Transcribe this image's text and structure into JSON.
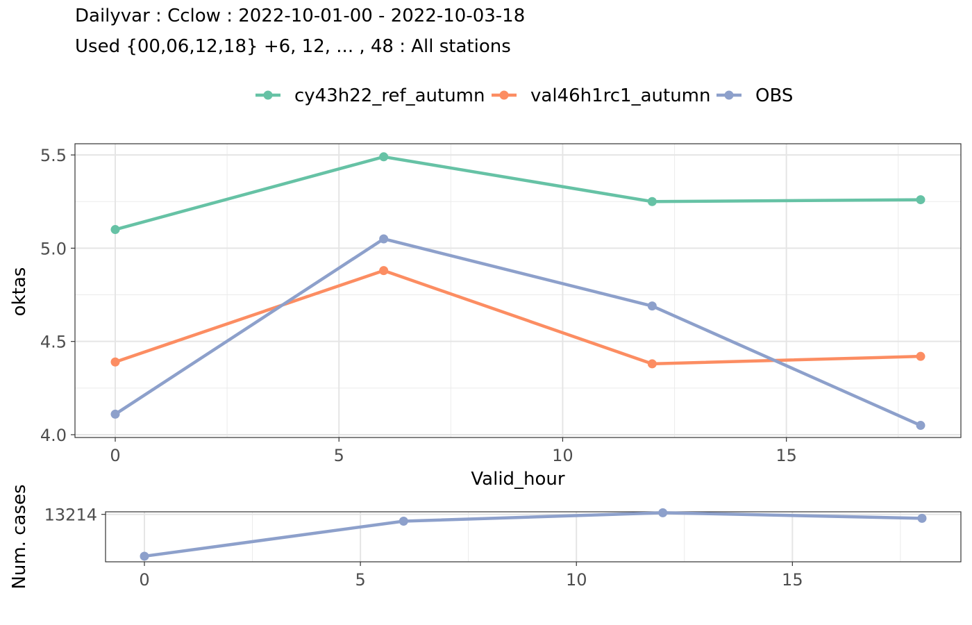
{
  "header": {
    "title_line1": "Dailyvar : Cclow : 2022-10-01-00 - 2022-10-03-18",
    "title_line2": "Used {00,06,12,18} +6, 12, ... , 48 : All stations"
  },
  "colors": {
    "cy43h22_ref_autumn": "#66c2a5",
    "val46h1rc1_autumn": "#fc8d62",
    "OBS": "#8da0cb"
  },
  "chart_data": [
    {
      "type": "line",
      "xlabel": "Valid_hour",
      "ylabel": "oktas",
      "xlim": [
        -0.9,
        18.9
      ],
      "ylim": [
        3.985,
        5.56
      ],
      "x_ticks": [
        "0",
        "5",
        "10",
        "15"
      ],
      "y_ticks": [
        "4.0",
        "4.5",
        "5.0",
        "5.5"
      ],
      "grid": true,
      "legend_position": "top",
      "x": [
        0,
        6,
        12,
        18
      ],
      "series": [
        {
          "name": "cy43h22_ref_autumn",
          "values": [
            5.1,
            5.49,
            5.25,
            5.26
          ]
        },
        {
          "name": "val46h1rc1_autumn",
          "values": [
            4.39,
            4.88,
            4.38,
            4.42
          ]
        },
        {
          "name": "OBS",
          "values": [
            4.11,
            5.05,
            4.69,
            4.05
          ]
        }
      ]
    },
    {
      "type": "line",
      "xlabel": "",
      "ylabel": "Num. cases",
      "xlim": [
        -0.9,
        18.9
      ],
      "ylim": [
        12450,
        13255
      ],
      "x_ticks": [
        "0",
        "5",
        "10",
        "15"
      ],
      "y_ticks": [
        "13214"
      ],
      "grid": true,
      "x": [
        0,
        6,
        12,
        18
      ],
      "series": [
        {
          "values": [
            12540,
            13104,
            13240,
            13150
          ]
        }
      ]
    }
  ]
}
